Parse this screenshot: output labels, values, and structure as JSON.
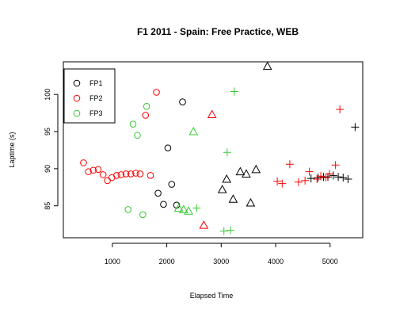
{
  "chart_data": {
    "type": "scatter",
    "title": "F1 2011 - Spain: Free Practice, WEB",
    "xlabel": "Elapsed Time",
    "ylabel": "Laptime (s)",
    "xlim": [
      100,
      5600
    ],
    "ylim": [
      80.7,
      104.4
    ],
    "xticks": [
      1000,
      2000,
      3000,
      4000,
      5000
    ],
    "yticks": [
      85,
      90,
      95,
      100
    ],
    "grid": false,
    "legend_position": "top-left",
    "marker_note": "circle = before ~2250s, triangle = 2250-3900s, plus = after ~3900s",
    "series": [
      {
        "name": "FP1",
        "color": "#000000",
        "circles": [
          [
            1840,
            86.7
          ],
          [
            1940,
            85.2
          ],
          [
            2020,
            92.8
          ],
          [
            2090,
            87.9
          ],
          [
            2180,
            85.1
          ],
          [
            2290,
            99.0
          ]
        ],
        "triangles": [
          [
            3020,
            87.2
          ],
          [
            3100,
            88.6
          ],
          [
            3220,
            85.9
          ],
          [
            3350,
            89.6
          ],
          [
            3460,
            89.3
          ],
          [
            3540,
            85.4
          ],
          [
            3640,
            89.9
          ],
          [
            3850,
            103.8
          ]
        ],
        "pluses": [
          [
            4650,
            88.7
          ],
          [
            4780,
            88.8
          ],
          [
            4880,
            88.9
          ],
          [
            4960,
            88.9
          ],
          [
            5060,
            89.1
          ],
          [
            5150,
            88.9
          ],
          [
            5240,
            88.8
          ],
          [
            5330,
            88.6
          ],
          [
            5460,
            95.6
          ]
        ]
      },
      {
        "name": "FP2",
        "color": "#ff0000",
        "circles": [
          [
            470,
            90.8
          ],
          [
            560,
            89.6
          ],
          [
            650,
            89.8
          ],
          [
            740,
            89.9
          ],
          [
            830,
            89.2
          ],
          [
            910,
            88.4
          ],
          [
            990,
            88.8
          ],
          [
            1080,
            89.1
          ],
          [
            1160,
            89.2
          ],
          [
            1250,
            89.3
          ],
          [
            1340,
            89.3
          ],
          [
            1430,
            89.4
          ],
          [
            1510,
            89.3
          ],
          [
            1610,
            97.2
          ],
          [
            1700,
            89.1
          ],
          [
            1810,
            100.3
          ]
        ],
        "triangles": [
          [
            2680,
            82.4
          ],
          [
            2830,
            97.3
          ]
        ],
        "pluses": [
          [
            4030,
            88.3
          ],
          [
            4120,
            88.0
          ],
          [
            4260,
            90.6
          ],
          [
            4420,
            88.2
          ],
          [
            4540,
            88.4
          ],
          [
            4620,
            89.6
          ],
          [
            4760,
            88.6
          ],
          [
            4830,
            89.0
          ],
          [
            4920,
            88.8
          ],
          [
            4990,
            89.3
          ],
          [
            5100,
            90.5
          ],
          [
            5180,
            98.0
          ]
        ]
      },
      {
        "name": "FP3",
        "color": "#33cc33",
        "circles": [
          [
            1290,
            84.5
          ],
          [
            1380,
            96.0
          ],
          [
            1460,
            94.5
          ],
          [
            1560,
            83.8
          ],
          [
            1630,
            98.4
          ]
        ],
        "triangles": [
          [
            2220,
            84.7
          ],
          [
            2310,
            84.5
          ],
          [
            2400,
            84.3
          ],
          [
            2490,
            95.0
          ]
        ],
        "pluses": [
          [
            2550,
            84.7
          ],
          [
            3050,
            81.6
          ],
          [
            3170,
            81.7
          ],
          [
            3110,
            92.2
          ],
          [
            3240,
            100.4
          ]
        ]
      }
    ]
  }
}
